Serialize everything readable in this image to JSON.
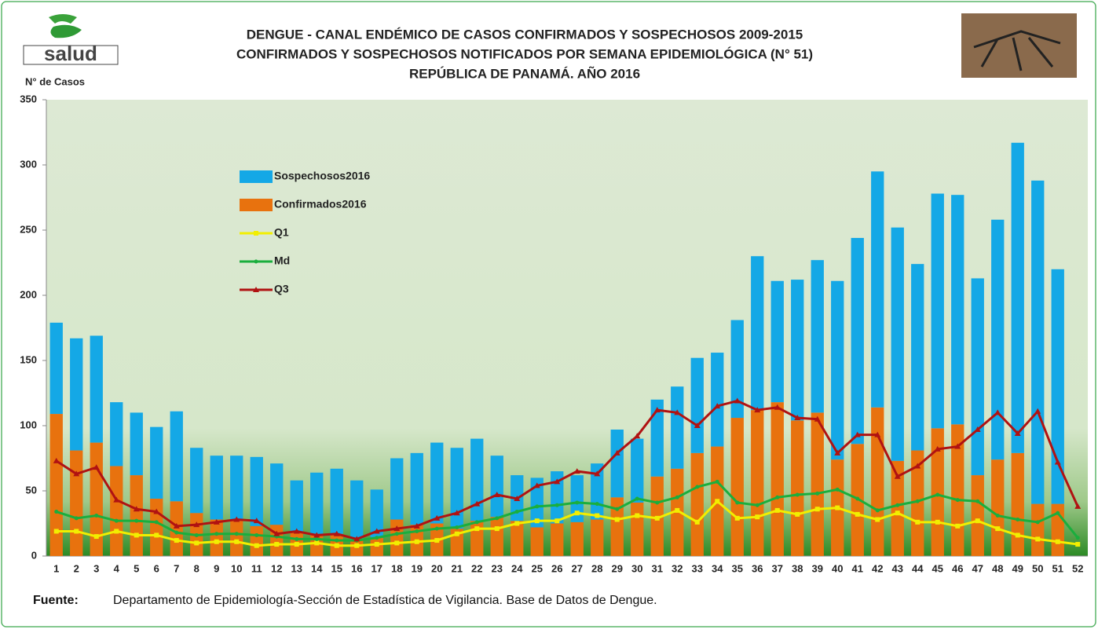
{
  "logo_text": "salud",
  "chart_data": {
    "type": "stacked-bar-line",
    "title": [
      "DENGUE - CANAL ENDÉMICO DE CASOS CONFIRMADOS Y SOSPECHOSOS 2009-2015",
      "CONFIRMADOS Y SOSPECHOSOS NOTIFICADOS POR SEMANA EPIDEMIOLÓGICA (N° 51)",
      "REPÚBLICA DE PANAMÁ. AÑO 2016"
    ],
    "y_label": "N° de Casos",
    "categories": [
      1,
      2,
      3,
      4,
      5,
      6,
      7,
      8,
      9,
      10,
      11,
      12,
      13,
      14,
      15,
      16,
      17,
      18,
      19,
      20,
      21,
      22,
      23,
      24,
      25,
      26,
      27,
      28,
      29,
      30,
      31,
      32,
      33,
      34,
      35,
      36,
      37,
      38,
      39,
      40,
      41,
      42,
      43,
      44,
      45,
      46,
      47,
      48,
      49,
      50,
      51,
      52
    ],
    "ylim": [
      0,
      350
    ],
    "yticks": [
      0,
      50,
      100,
      150,
      200,
      250,
      300,
      350
    ],
    "series": [
      {
        "name": "Sospechosos2016",
        "kind": "bar",
        "color": "#14a8e6",
        "values": [
          70,
          86,
          82,
          49,
          48,
          55,
          69,
          50,
          49,
          50,
          53,
          47,
          40,
          47,
          50,
          46,
          37,
          47,
          55,
          62,
          62,
          63,
          47,
          35,
          38,
          40,
          36,
          43,
          52,
          49,
          59,
          63,
          73,
          72,
          75,
          118,
          93,
          108,
          117,
          137,
          158,
          181,
          179,
          143,
          180,
          176,
          151,
          184,
          238,
          248,
          180,
          null
        ]
      },
      {
        "name": "Confirmados2016",
        "kind": "bar",
        "color": "#e8720e",
        "values": [
          109,
          81,
          87,
          69,
          62,
          44,
          42,
          33,
          28,
          27,
          23,
          24,
          18,
          17,
          17,
          12,
          14,
          28,
          24,
          25,
          21,
          27,
          30,
          27,
          22,
          25,
          26,
          28,
          45,
          41,
          61,
          67,
          79,
          84,
          106,
          112,
          118,
          104,
          110,
          74,
          86,
          114,
          73,
          81,
          98,
          101,
          62,
          74,
          79,
          40,
          40,
          null
        ]
      },
      {
        "name": "Q1",
        "kind": "line",
        "color": "#f2ee00",
        "values": [
          19,
          19,
          15,
          19,
          16,
          16,
          12,
          10,
          11,
          11,
          8,
          9,
          9,
          10,
          8,
          8,
          9,
          10,
          11,
          12,
          17,
          21,
          21,
          25,
          27,
          27,
          33,
          31,
          28,
          31,
          29,
          35,
          26,
          42,
          29,
          30,
          35,
          32,
          36,
          37,
          32,
          28,
          33,
          26,
          26,
          23,
          27,
          21,
          16,
          13,
          11,
          9
        ]
      },
      {
        "name": "Md",
        "kind": "line",
        "color": "#1aae3d",
        "values": [
          34,
          29,
          31,
          27,
          27,
          26,
          18,
          16,
          17,
          17,
          16,
          15,
          13,
          13,
          12,
          12,
          14,
          17,
          19,
          21,
          22,
          26,
          29,
          34,
          38,
          39,
          41,
          40,
          36,
          44,
          41,
          45,
          53,
          57,
          41,
          39,
          45,
          47,
          48,
          51,
          44,
          35,
          39,
          42,
          47,
          43,
          42,
          31,
          28,
          26,
          33,
          14
        ]
      },
      {
        "name": "Q3",
        "kind": "line",
        "color": "#b01212",
        "values": [
          73,
          63,
          68,
          43,
          36,
          34,
          23,
          24,
          26,
          28,
          27,
          17,
          19,
          16,
          17,
          13,
          19,
          21,
          23,
          29,
          33,
          40,
          47,
          44,
          54,
          57,
          65,
          63,
          79,
          92,
          112,
          110,
          100,
          115,
          119,
          112,
          114,
          106,
          105,
          79,
          93,
          93,
          61,
          69,
          82,
          84,
          97,
          110,
          94,
          111,
          72,
          38
        ]
      }
    ],
    "source_label": "Fuente:",
    "source_text": "Departamento de Epidemiología-Sección de Estadística de Vigilancia. Base de Datos de Dengue."
  }
}
